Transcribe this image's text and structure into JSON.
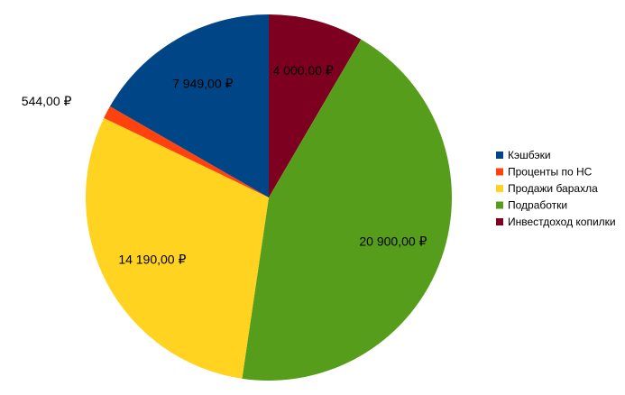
{
  "chart_data": {
    "type": "pie",
    "title": "",
    "legend_position": "right",
    "currency": "₽",
    "slices": [
      {
        "name": "Инвестдоход копилки",
        "value": 4000.0,
        "label": "4 000,00 ₽",
        "color": "#7e0021"
      },
      {
        "name": "Подработки",
        "value": 20900.0,
        "label": "20 900,00 ₽",
        "color": "#579d1c"
      },
      {
        "name": "Продажи барахла",
        "value": 14190.0,
        "label": "14 190,00 ₽",
        "color": "#ffd320"
      },
      {
        "name": "Проценты по НС",
        "value": 544.0,
        "label": "544,00 ₽",
        "color": "#ff420e"
      },
      {
        "name": "Кэшбэки",
        "value": 7949.0,
        "label": "7 949,00 ₽",
        "color": "#004586"
      }
    ],
    "legend": [
      {
        "name": "Кэшбэки",
        "color": "#004586"
      },
      {
        "name": "Проценты по НС",
        "color": "#ff420e"
      },
      {
        "name": "Продажи барахла",
        "color": "#ffd320"
      },
      {
        "name": "Подработки",
        "color": "#579d1c"
      },
      {
        "name": "Инвестдоход копилки",
        "color": "#7e0021"
      }
    ]
  }
}
